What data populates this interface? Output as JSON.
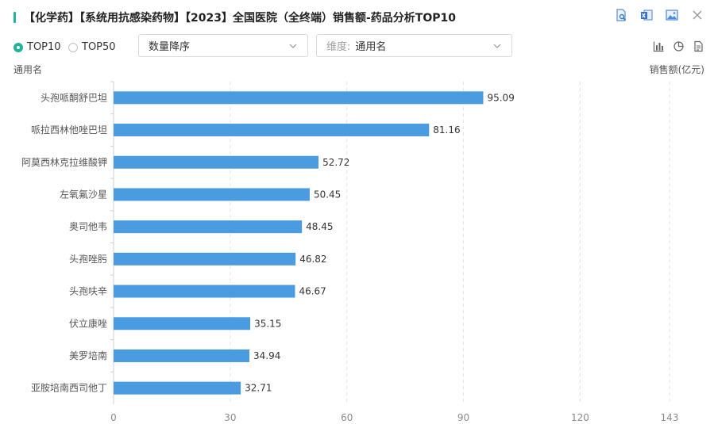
{
  "title": "【化学药】【系统用抗感染药物】【2023】全国医院（全终端）销售额-药品分析TOP10",
  "icons": {
    "top": [
      "search-file-icon",
      "excel-export-icon",
      "image-export-icon",
      "close-icon"
    ],
    "view": [
      "bar-chart-icon",
      "pie-chart-icon",
      "document-icon"
    ]
  },
  "colors": {
    "accent": "#1fb39a",
    "bar": "#4a9be0"
  },
  "controls": {
    "radios": [
      {
        "label": "TOP10",
        "checked": true
      },
      {
        "label": "TOP50",
        "checked": false
      }
    ],
    "sort_select": "数量降序",
    "dimension_prefix": "维度:",
    "dimension_select": "通用名"
  },
  "axis": {
    "y_name": "通用名",
    "x_name": "销售额(亿元)"
  },
  "chart_data": {
    "type": "bar",
    "orientation": "horizontal",
    "categories": [
      "头孢哌酮舒巴坦",
      "哌拉西林他唑巴坦",
      "阿莫西林克拉维酸钾",
      "左氧氟沙星",
      "奥司他韦",
      "头孢唑肟",
      "头孢呋辛",
      "伏立康唑",
      "美罗培南",
      "亚胺培南西司他丁"
    ],
    "values": [
      95.09,
      81.16,
      52.72,
      50.45,
      48.45,
      46.82,
      46.67,
      35.15,
      34.94,
      32.71
    ],
    "x_ticks": [
      0,
      30,
      60,
      90,
      120,
      143
    ],
    "xlim": [
      0,
      143
    ],
    "xlabel": "销售额(亿元)",
    "ylabel": "通用名",
    "grid": true
  }
}
